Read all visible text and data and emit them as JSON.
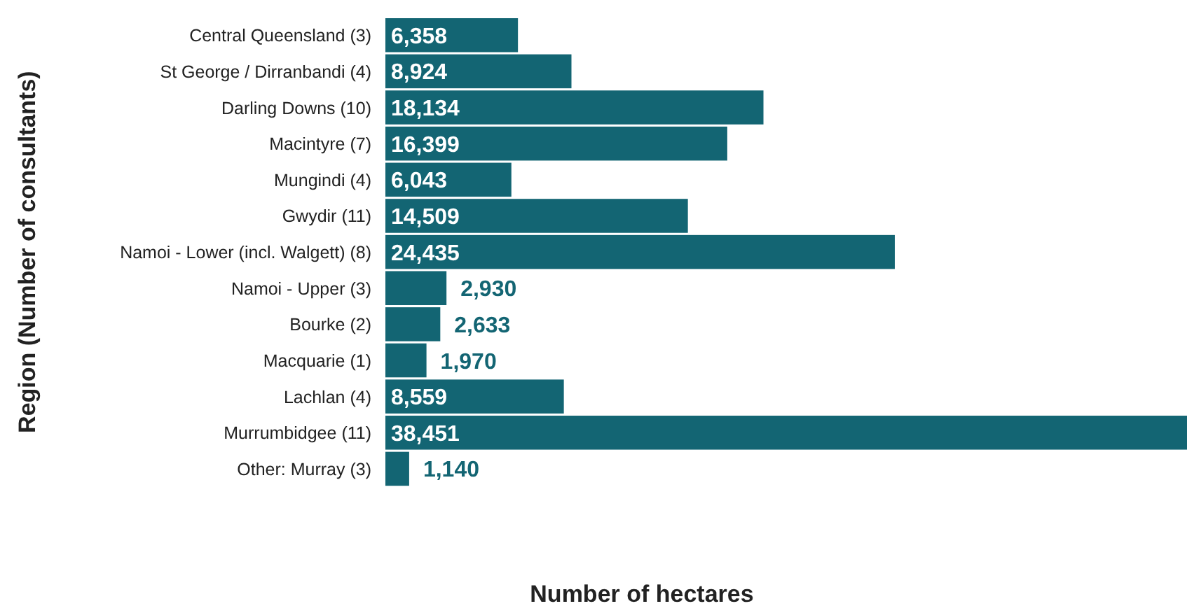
{
  "chart_data": {
    "type": "bar",
    "orientation": "horizontal",
    "xlabel": "Number of hectares",
    "ylabel": "Region (Number of consultants)",
    "categories": [
      "Central Queensland (3)",
      "St George / Dirranbandi (4)",
      "Darling Downs (10)",
      "Macintyre (7)",
      "Mungindi (4)",
      "Gwydir (11)",
      "Namoi - Lower (incl. Walgett) (8)",
      "Namoi - Upper (3)",
      "Bourke (2)",
      "Macquarie (1)",
      "Lachlan (4)",
      "Murrumbidgee (11)",
      "Other: Murray (3)"
    ],
    "values": [
      6358,
      8924,
      18134,
      16399,
      6043,
      14509,
      24435,
      2930,
      2633,
      1970,
      8559,
      38451,
      1140
    ],
    "value_labels": [
      "6,358",
      "8,924",
      "18,134",
      "16,399",
      "6,043",
      "14,509",
      "24,435",
      "2,930",
      "2,633",
      "1,970",
      "8,559",
      "38,451",
      "1,140"
    ],
    "color": "#136573"
  }
}
